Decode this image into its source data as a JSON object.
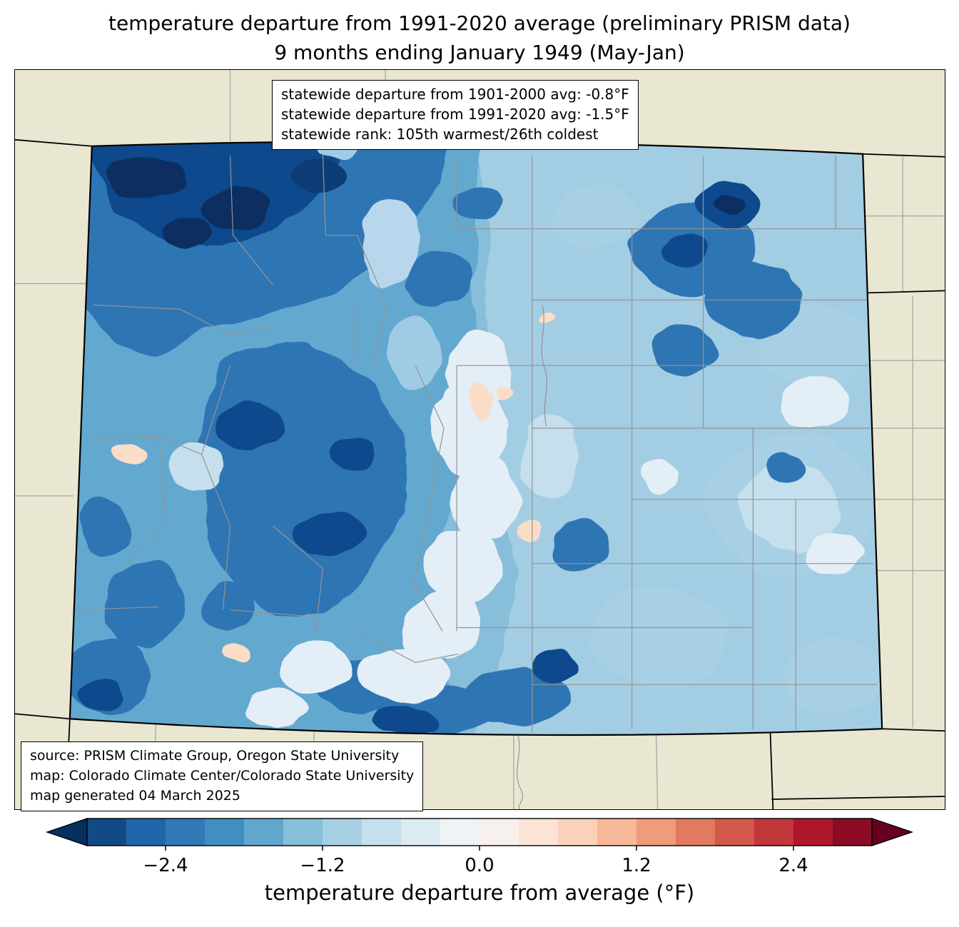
{
  "title": {
    "line1": "temperature departure from 1991-2020 average (preliminary PRISM data)",
    "line2": "9 months ending January 1949 (May-Jan)"
  },
  "stats_box": {
    "lines": [
      "statewide departure from 1901-2000 avg: -0.8°F",
      "statewide departure from 1991-2020 avg: -1.5°F",
      "statewide rank: 105th warmest/26th coldest"
    ]
  },
  "source_box": {
    "lines": [
      "source: PRISM Climate Group, Oregon State University",
      "map: Colorado Climate Center/Colorado State University",
      "map generated 04 March 2025"
    ]
  },
  "colorbar": {
    "label": "temperature departure from average (°F)",
    "ticks": [
      "−2.4",
      "−1.2",
      "0.0",
      "1.2",
      "2.4"
    ],
    "tick_values": [
      -2.4,
      -1.2,
      0.0,
      1.2,
      2.4
    ],
    "range": [
      -3.0,
      3.0
    ],
    "colors": [
      "#124a85",
      "#2065aa",
      "#3079b6",
      "#408fc1",
      "#61a6cd",
      "#87beda",
      "#a7d0e4",
      "#c5dfed",
      "#dceaf2",
      "#eef3f5",
      "#f8f0ec",
      "#fbe3d5",
      "#fcd1ba",
      "#f7b799",
      "#f09b7a",
      "#e17a61",
      "#d3594a",
      "#c1373a",
      "#ae172a",
      "#8b0b25"
    ],
    "under_color": "#053061",
    "over_color": "#67001f"
  },
  "map": {
    "region": "Colorado",
    "background_color": "#e9e7d1",
    "state_border_color": "#000000",
    "county_line_color": "#949494"
  },
  "chart_data": {
    "type": "heatmap",
    "title": "temperature departure from 1991-2020 average (preliminary PRISM data) — 9 months ending January 1949 (May-Jan)",
    "region": "Colorado",
    "colorbar_label": "temperature departure from average (°F)",
    "colorbar_ticks": [
      -2.4,
      -1.2,
      0.0,
      1.2,
      2.4
    ],
    "colorbar_range": [
      -3.0,
      3.0
    ],
    "statewide_departure_from_1901_2000_avg_F": -0.8,
    "statewide_departure_from_1991_2020_avg_F": -1.5,
    "statewide_rank": "105th warmest/26th coldest",
    "legend_position": "bottom"
  }
}
